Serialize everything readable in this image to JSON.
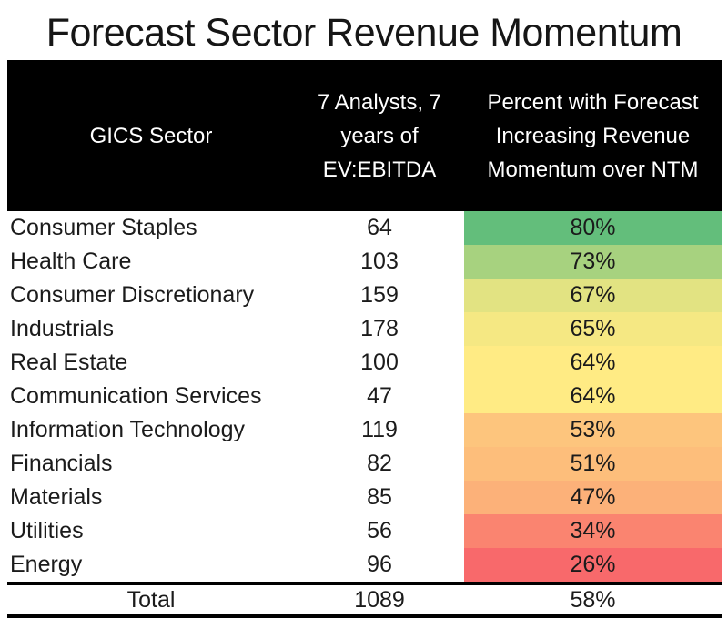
{
  "title": "Forecast Sector Revenue Momentum",
  "table": {
    "header": {
      "col1": "GICS Sector",
      "col2_lines": [
        "7 Analysts, 7",
        "years of",
        "EV:EBITDA"
      ],
      "col3_lines": [
        "Percent with Forecast",
        "Increasing Revenue",
        "Momentum over NTM"
      ]
    },
    "rows": [
      {
        "sector": "Consumer Staples",
        "count": "64",
        "percent": "80%",
        "color": "#63BE7B"
      },
      {
        "sector": "Health Care",
        "count": "103",
        "percent": "73%",
        "color": "#A7D27F"
      },
      {
        "sector": "Consumer Discretionary",
        "count": "159",
        "percent": "67%",
        "color": "#E2E382"
      },
      {
        "sector": "Industrials",
        "count": "178",
        "percent": "65%",
        "color": "#F5E883"
      },
      {
        "sector": "Real Estate",
        "count": "100",
        "percent": "64%",
        "color": "#FFEB84"
      },
      {
        "sector": "Communication Services",
        "count": "47",
        "percent": "64%",
        "color": "#FFEB84"
      },
      {
        "sector": "Information Technology",
        "count": "119",
        "percent": "53%",
        "color": "#FDC57D"
      },
      {
        "sector": "Financials",
        "count": "82",
        "percent": "51%",
        "color": "#FDBE7B"
      },
      {
        "sector": "Materials",
        "count": "85",
        "percent": "47%",
        "color": "#FCB179"
      },
      {
        "sector": "Utilities",
        "count": "56",
        "percent": "34%",
        "color": "#FA8470"
      },
      {
        "sector": "Energy",
        "count": "96",
        "percent": "26%",
        "color": "#F8696B"
      }
    ],
    "total": {
      "label": "Total",
      "count": "1089",
      "percent": "58%"
    }
  },
  "colors": {
    "header_bg": "#000000",
    "header_text": "#FFFFFF",
    "body_text": "#1B1B1B",
    "scale_max_green": "#63BE7B",
    "scale_mid_yellow": "#FFEB84",
    "scale_min_red": "#F8696B"
  },
  "chart_data": {
    "type": "table",
    "title": "Forecast Sector Revenue Momentum",
    "columns": [
      "GICS Sector",
      "7 Analysts, 7 years of EV:EBITDA",
      "Percent with Forecast Increasing Revenue Momentum over NTM"
    ],
    "categories": [
      "Consumer Staples",
      "Health Care",
      "Consumer Discretionary",
      "Industrials",
      "Real Estate",
      "Communication Services",
      "Information Technology",
      "Financials",
      "Materials",
      "Utilities",
      "Energy"
    ],
    "series": [
      {
        "name": "EV:EBITDA count",
        "values": [
          64,
          103,
          159,
          178,
          100,
          47,
          119,
          82,
          85,
          56,
          96
        ]
      },
      {
        "name": "Percent with Forecast Increasing Revenue Momentum over NTM",
        "values": [
          80,
          73,
          67,
          65,
          64,
          64,
          53,
          51,
          47,
          34,
          26
        ],
        "unit": "%"
      }
    ],
    "total": {
      "label": "Total",
      "count": 1089,
      "percent": 58
    },
    "heatmap_column": "Percent with Forecast Increasing Revenue Momentum over NTM",
    "heatmap_scale": {
      "min_color": "#F8696B",
      "mid_color": "#FFEB84",
      "max_color": "#63BE7B",
      "min_value": 26,
      "mid_value": 64,
      "max_value": 80
    }
  }
}
